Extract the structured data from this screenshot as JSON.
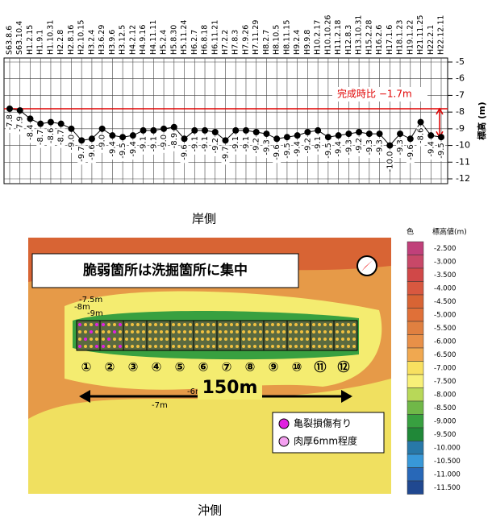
{
  "chart_data": {
    "type": "line",
    "categories": [
      "S63.8.6",
      "S63.10.4",
      "H1.2.15",
      "H1.9.1",
      "H1.10.31",
      "H2.2.8",
      "H2.8.16",
      "H2.10.15",
      "H3.2.4",
      "H3.6.29",
      "H3.9.6",
      "H3.12.5",
      "H4.2.12",
      "H4.9.16",
      "H4.11.11",
      "H5.2.4",
      "H5.8.30",
      "H5.11.24",
      "H6.2.7",
      "H6.8.18",
      "H6.11.21",
      "H7.2.2",
      "H7.8.3",
      "H7.9.26",
      "H7.11.29",
      "H8.2.7",
      "H8.10.5",
      "H8.11.15",
      "H9.2.4",
      "H9.9.8",
      "H10.2.17",
      "H10.10.26",
      "H11.2.18",
      "H12.8.3",
      "H13.10.31",
      "H15.2.28",
      "H16.2.6",
      "H17.1.6",
      "H18.1.23",
      "H19.1.22",
      "H21.11.25",
      "H22.2.1",
      "H22.12.11"
    ],
    "values": [
      -7.8,
      -7.9,
      -8.4,
      -8.7,
      -8.6,
      -8.7,
      -9.0,
      -9.7,
      -9.6,
      -9.0,
      -9.4,
      -9.5,
      -9.4,
      -9.1,
      -9.1,
      -9.0,
      -8.9,
      -9.6,
      -9.1,
      -9.1,
      -9.2,
      -9.7,
      -9.1,
      -9.1,
      -9.2,
      -9.3,
      -9.6,
      -9.5,
      -9.4,
      -9.2,
      -9.1,
      -9.5,
      -9.4,
      -9.3,
      -9.2,
      -9.3,
      -9.3,
      -10.0,
      -9.3,
      -9.6,
      -8.6,
      -9.4,
      -9.5
    ],
    "value_labels": [
      "-7.8",
      "-7.9",
      "-8.4",
      "-8.7",
      "-8.6",
      "-8.7",
      "-9.0",
      "-9.7",
      "-9.6",
      "-9.0",
      "-9.4",
      "-9.5",
      "-9.4",
      "-9.1",
      "-9.1",
      "-9.0",
      "-8.9",
      "-9.6",
      "-9.1",
      "-9.1",
      "-9.2",
      "-9.7",
      "-9.1",
      "-9.1",
      "-9.2",
      "-9.3",
      "-9.6",
      "-9.5",
      "-9.4",
      "-9.2",
      "-9.1",
      "-9.5",
      "-9.4",
      "-9.3",
      "-9.2",
      "-9.3",
      "-9.3",
      "-10.0",
      "-9.3",
      "-9.6",
      "-8.6",
      "-9.4",
      "-9.5"
    ],
    "color": "#000000",
    "ylim": [
      -12,
      -5
    ],
    "yticks": [
      -5,
      -6,
      -7,
      -8,
      -9,
      -10,
      -11,
      -12
    ],
    "grid": true,
    "y_label": "標高 (m)",
    "reference_line": {
      "value": -7.8,
      "color": "#e00000",
      "label": "完成時比 −1.7m"
    }
  },
  "map": {
    "shore_label": "岸側",
    "offshore_label": "沖側",
    "headline": "脆弱箇所は洗掘箇所に集中",
    "scale_label": "150m",
    "blocks": [
      "①",
      "②",
      "③",
      "④",
      "⑤",
      "⑥",
      "⑦",
      "⑧",
      "⑨",
      "⑩",
      "⑪",
      "⑫"
    ],
    "depth_labels": [
      "-7.5m",
      "-8m",
      "-9m",
      "-6m",
      "-7m"
    ],
    "marker_legend": [
      "亀裂損傷有り",
      "肉厚6mm程度"
    ],
    "color_legend": {
      "color_title": "色",
      "value_title": "標高値(m)",
      "levels": [
        {
          "label": "-2.500",
          "color": "#c0407a"
        },
        {
          "label": "-3.000",
          "color": "#c84868"
        },
        {
          "label": "-3.500",
          "color": "#d04848"
        },
        {
          "label": "-4.000",
          "color": "#d85840"
        },
        {
          "label": "-4.500",
          "color": "#d86434"
        },
        {
          "label": "-5.000",
          "color": "#e07038"
        },
        {
          "label": "-5.500",
          "color": "#e08040"
        },
        {
          "label": "-6.000",
          "color": "#e89048"
        },
        {
          "label": "-6.500",
          "color": "#f0a850"
        },
        {
          "label": "-7.000",
          "color": "#f8e060"
        },
        {
          "label": "-7.500",
          "color": "#f8f078"
        },
        {
          "label": "-8.000",
          "color": "#b8d858"
        },
        {
          "label": "-8.500",
          "color": "#70b848"
        },
        {
          "label": "-9.000",
          "color": "#38a040"
        },
        {
          "label": "-9.500",
          "color": "#208838"
        },
        {
          "label": "-10.000",
          "color": "#2878a8"
        },
        {
          "label": "-10.500",
          "color": "#3898d8"
        },
        {
          "label": "-11.000",
          "color": "#2868b8"
        },
        {
          "label": "-11.500",
          "color": "#204890"
        }
      ]
    }
  }
}
